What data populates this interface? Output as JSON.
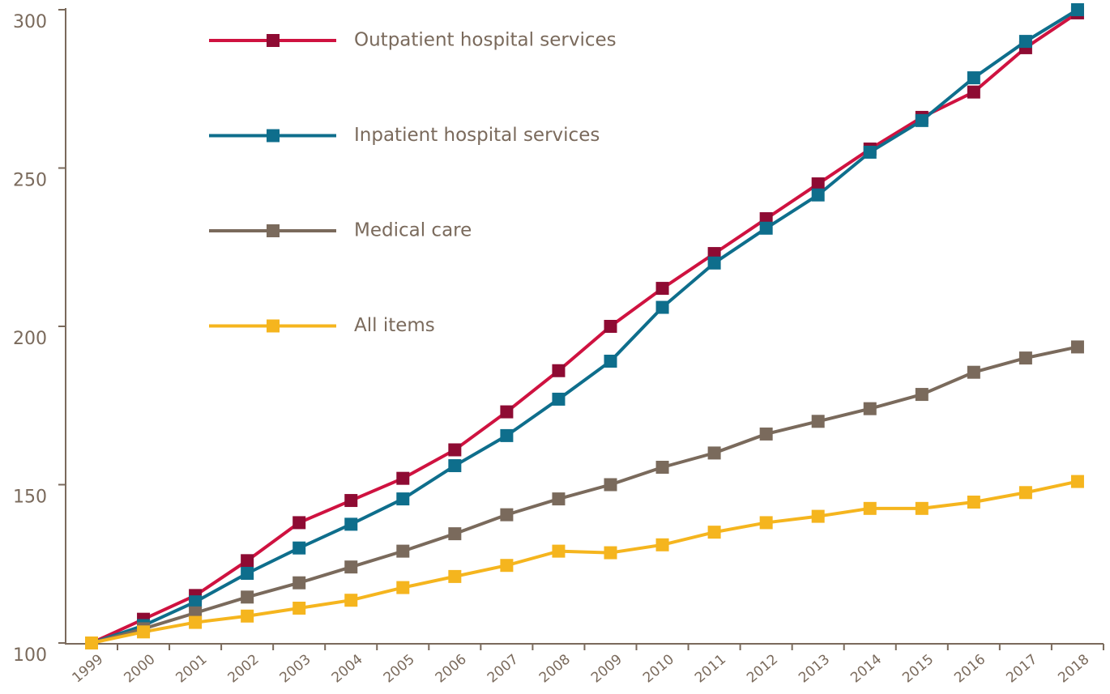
{
  "chart_data": {
    "type": "line",
    "categories": [
      "1999",
      "2000",
      "2001",
      "2002",
      "2003",
      "2004",
      "2005",
      "2006",
      "2007",
      "2008",
      "2009",
      "2010",
      "2011",
      "2012",
      "2013",
      "2014",
      "2015",
      "2016",
      "2017",
      "2018"
    ],
    "series": [
      {
        "name": "Outpatient hospital services",
        "color": "#cf1240",
        "marker_color": "#8e0b33",
        "values": [
          100,
          107.5,
          115,
          126,
          138,
          145,
          152,
          161,
          173,
          186,
          200,
          212,
          223,
          234,
          245,
          256,
          266,
          274,
          288,
          299
        ]
      },
      {
        "name": "Inpatient hospital services",
        "color": "#0e6e8c",
        "marker_color": "#0e6e8c",
        "values": [
          100,
          105.5,
          113,
          122,
          130,
          137.5,
          145.5,
          156,
          165.5,
          177,
          189,
          206,
          220,
          231,
          241.5,
          255,
          265,
          278.5,
          290,
          300
        ]
      },
      {
        "name": "Medical care",
        "color": "#7a6a5c",
        "marker_color": "#7a6a5c",
        "values": [
          100,
          104.5,
          109.5,
          114.5,
          119,
          124,
          129,
          134.5,
          140.5,
          145.5,
          150,
          155.5,
          160,
          166,
          170,
          174,
          178.5,
          185.5,
          190,
          193.5
        ]
      },
      {
        "name": "All items",
        "color": "#f5b51e",
        "marker_color": "#f5b51e",
        "values": [
          100,
          103.5,
          106.5,
          108.5,
          111,
          113.5,
          117.5,
          121,
          124.5,
          129,
          128.5,
          131,
          135,
          138,
          140,
          142.5,
          142.5,
          144.5,
          147.5,
          151
        ]
      }
    ],
    "ylim": [
      100,
      300
    ],
    "yticks": [
      100,
      150,
      200,
      250,
      300
    ]
  }
}
